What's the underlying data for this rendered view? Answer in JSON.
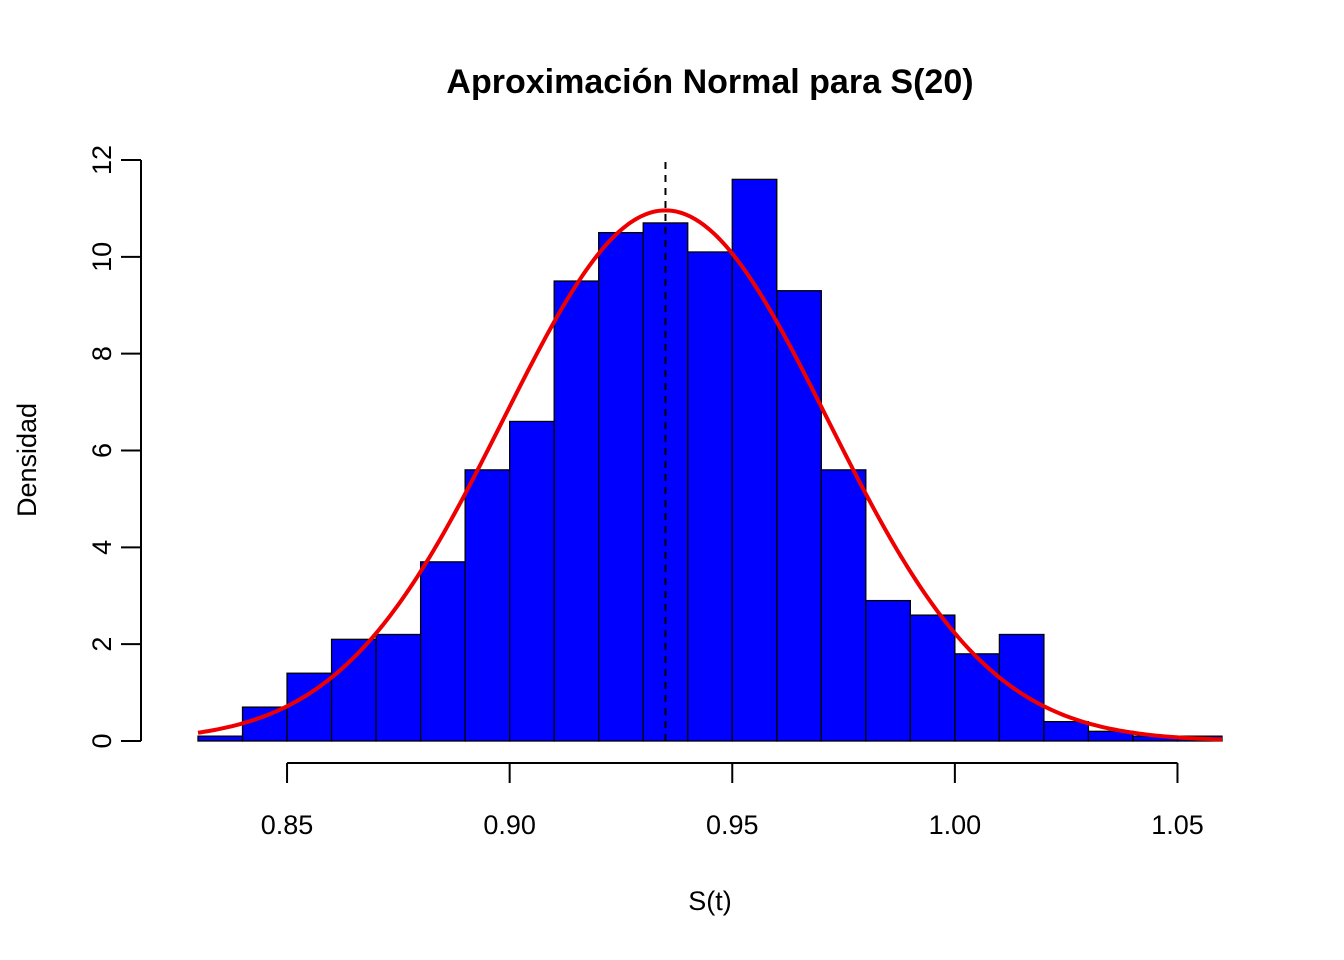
{
  "chart_data": {
    "type": "bar",
    "title": "Aproximación Normal para S(20)",
    "xlabel": "S(t)",
    "ylabel": "Densidad",
    "xlim": [
      0.83,
      1.06
    ],
    "ylim": [
      0,
      12
    ],
    "x_ticks": [
      "0.85",
      "0.90",
      "0.95",
      "1.00",
      "1.05"
    ],
    "y_ticks": [
      "0",
      "2",
      "4",
      "6",
      "8",
      "10",
      "12"
    ],
    "bin_width": 0.01,
    "bins": [
      {
        "x0": 0.83,
        "x1": 0.84,
        "density": 0.1
      },
      {
        "x0": 0.84,
        "x1": 0.85,
        "density": 0.7
      },
      {
        "x0": 0.85,
        "x1": 0.86,
        "density": 1.4
      },
      {
        "x0": 0.86,
        "x1": 0.87,
        "density": 2.1
      },
      {
        "x0": 0.87,
        "x1": 0.88,
        "density": 2.2
      },
      {
        "x0": 0.88,
        "x1": 0.89,
        "density": 3.7
      },
      {
        "x0": 0.89,
        "x1": 0.9,
        "density": 5.6
      },
      {
        "x0": 0.9,
        "x1": 0.91,
        "density": 6.6
      },
      {
        "x0": 0.91,
        "x1": 0.92,
        "density": 9.5
      },
      {
        "x0": 0.92,
        "x1": 0.93,
        "density": 10.5
      },
      {
        "x0": 0.93,
        "x1": 0.94,
        "density": 10.7
      },
      {
        "x0": 0.94,
        "x1": 0.95,
        "density": 10.1
      },
      {
        "x0": 0.95,
        "x1": 0.96,
        "density": 11.6
      },
      {
        "x0": 0.96,
        "x1": 0.97,
        "density": 9.3
      },
      {
        "x0": 0.97,
        "x1": 0.98,
        "density": 5.6
      },
      {
        "x0": 0.98,
        "x1": 0.99,
        "density": 2.9
      },
      {
        "x0": 0.99,
        "x1": 1.0,
        "density": 2.6
      },
      {
        "x0": 1.0,
        "x1": 1.01,
        "density": 1.8
      },
      {
        "x0": 1.01,
        "x1": 1.02,
        "density": 2.2
      },
      {
        "x0": 1.02,
        "x1": 1.03,
        "density": 0.4
      },
      {
        "x0": 1.03,
        "x1": 1.04,
        "density": 0.2
      },
      {
        "x0": 1.04,
        "x1": 1.05,
        "density": 0.1
      },
      {
        "x0": 1.05,
        "x1": 1.06,
        "density": 0.1
      }
    ],
    "normal_curve": {
      "mean": 0.935,
      "sd": 0.0364
    },
    "mean_line": {
      "x": 0.935,
      "style": "dashed"
    },
    "colors": {
      "bars": "#0000ff",
      "bar_border": "#000000",
      "curve": "#ee0000",
      "mean_line": "#000000"
    }
  }
}
